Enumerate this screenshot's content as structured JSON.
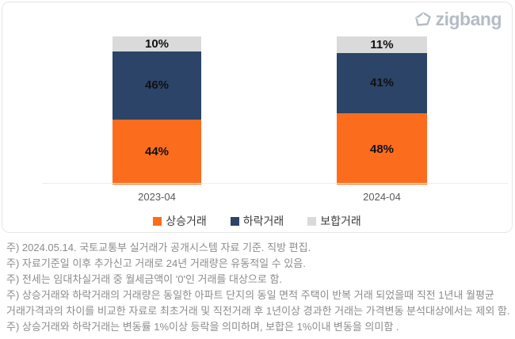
{
  "logo": {
    "text": "zigbang",
    "icon": "zigbang-gem-icon",
    "color": "#b4bcc6"
  },
  "chart_data": {
    "type": "bar",
    "stacked": true,
    "title": "",
    "xlabel": "",
    "ylabel": "",
    "categories": [
      "2023-04",
      "2024-04"
    ],
    "series": [
      {
        "name": "상승거래",
        "color": "#fb6c1d",
        "values": [
          44,
          48
        ]
      },
      {
        "name": "하락거래",
        "color": "#2b4467",
        "values": [
          46,
          41
        ]
      },
      {
        "name": "보합거래",
        "color": "#dadada",
        "values": [
          10,
          11
        ]
      }
    ],
    "value_suffix": "%",
    "ylim": [
      0,
      100
    ],
    "grid": false,
    "legend_position": "bottom",
    "label_color": "#111111"
  },
  "footnotes": [
    "주) 2024.05.14. 국토교통부 실거래가 공개시스템 자료 기준. 직방 편집.",
    "주) 자료기준일 이후 추가신고 거래로 24년 거래량은 유동적일 수 있음.",
    "주) 전세는 임대차실거래 중 월세금액이 '0'인 거래를 대상으로 함.",
    "주) 상승거래와 하락거래의 거래량은 동일한 아파트 단지의 동일 면적 주택이 반복 거래 되었을때 직전 1년내 월평균",
    "거래가격과의 차이를 비교한 자료로 최초거래 및 직전거래 후 1년이상 경과한 거래는 가격변동 분석대상에서는 제외 함.",
    "주) 상승거래와 하락거래는 변동률 1%이상 등락을 의미하며, 보합은 1%이내 변동을 의미함 ."
  ]
}
